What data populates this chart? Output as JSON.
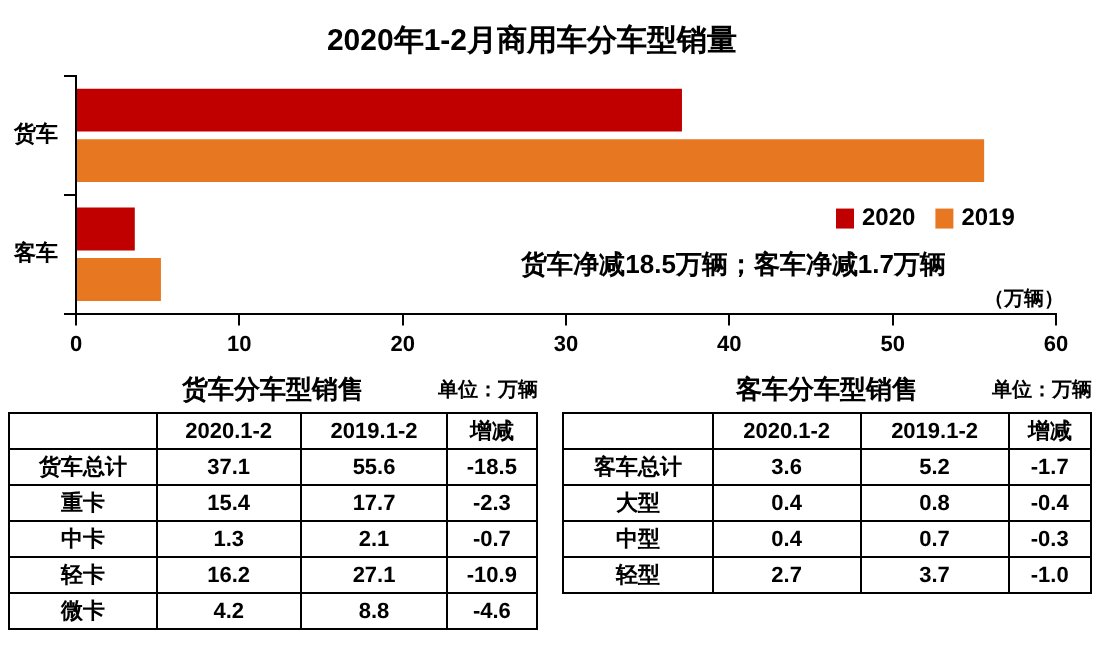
{
  "chart_data": [
    {
      "type": "bar",
      "title": "2020年1-2月商用车分车型销量",
      "orientation": "horizontal",
      "categories": [
        "货车",
        "客车"
      ],
      "series": [
        {
          "name": "2020",
          "color": "#c00000",
          "values": [
            37.1,
            3.6
          ]
        },
        {
          "name": "2019",
          "color": "#e87722",
          "values": [
            55.6,
            5.2
          ]
        }
      ],
      "xlim": [
        0,
        60
      ],
      "xticks": [
        0,
        10,
        20,
        30,
        40,
        50,
        60
      ],
      "xlabel": "（万辆）",
      "grid": false,
      "legend": "right",
      "annotations": [
        "货车净减18.5万辆；客车净减1.7万辆"
      ]
    },
    {
      "type": "heatmap",
      "data_labels": true,
      "title": "货车分车型销售",
      "subtitle": "单位：万辆",
      "categories": [
        "2020.1-2",
        "2019.1-2",
        "增减"
      ],
      "y_categories": [
        "货车总计",
        "重卡",
        "中卡",
        "轻卡",
        "微卡"
      ],
      "cells": [
        [
          37.1,
          55.6,
          -18.5
        ],
        [
          15.4,
          17.7,
          -2.3
        ],
        [
          1.3,
          2.1,
          -0.7
        ],
        [
          16.2,
          27.1,
          -10.9
        ],
        [
          4.2,
          8.8,
          -4.6
        ]
      ]
    },
    {
      "type": "heatmap",
      "data_labels": true,
      "title": "客车分车型销售",
      "subtitle": "单位：万辆",
      "categories": [
        "2020.1-2",
        "2019.1-2",
        "增减"
      ],
      "y_categories": [
        "客车总计",
        "大型",
        "中型",
        "轻型"
      ],
      "cells": [
        [
          3.6,
          5.2,
          -1.7
        ],
        [
          0.4,
          0.8,
          -0.4
        ],
        [
          0.4,
          0.7,
          -0.3
        ],
        [
          2.7,
          3.7,
          -1.0
        ]
      ],
      "cell_labels": [
        [
          "3.6",
          "5.2",
          "-1.7"
        ],
        [
          "0.4",
          "0.8",
          "-0.4"
        ],
        [
          "0.4",
          "0.7",
          "-0.3"
        ],
        [
          "2.7",
          "3.7",
          "-1.0"
        ]
      ]
    }
  ]
}
